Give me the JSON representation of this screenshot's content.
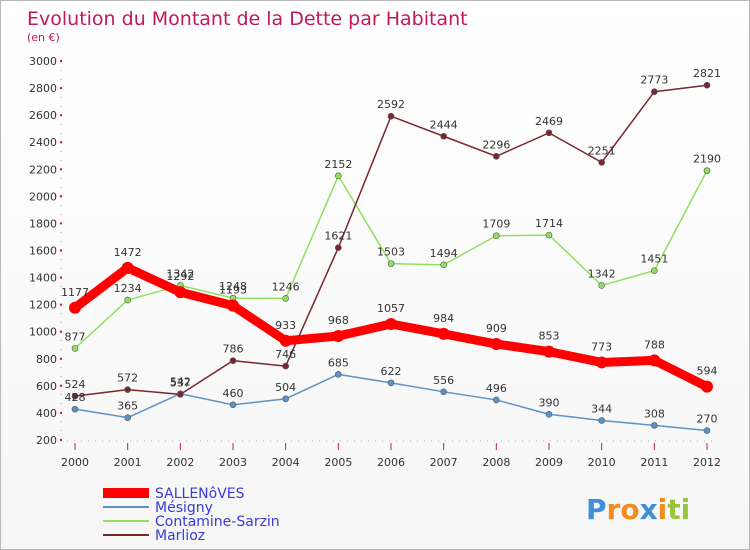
{
  "chart_data": {
    "type": "line",
    "title": "Evolution du Montant de la Dette par Habitant",
    "subtitle": "(en €)",
    "categories": [
      "2000",
      "2001",
      "2002",
      "2003",
      "2004",
      "2005",
      "2006",
      "2007",
      "2008",
      "2009",
      "2010",
      "2011",
      "2012"
    ],
    "ylim": [
      200,
      3000
    ],
    "yticks": [
      200,
      400,
      600,
      800,
      1000,
      1200,
      1400,
      1600,
      1800,
      2000,
      2200,
      2400,
      2600,
      2800,
      3000
    ],
    "grid": false,
    "legend_position": "bottom-left",
    "series": [
      {
        "name": "SALLENôVES",
        "color": "#ff0000",
        "emphasis": true,
        "values": [
          1177,
          1472,
          1292,
          1193,
          933,
          968,
          1057,
          984,
          909,
          853,
          773,
          788,
          594
        ]
      },
      {
        "name": "Mésigny",
        "color": "#5b93c6",
        "values": [
          428,
          365,
          542,
          460,
          504,
          685,
          622,
          556,
          496,
          390,
          344,
          308,
          270
        ]
      },
      {
        "name": "Contamine-Sarzin",
        "color": "#90e060",
        "values": [
          877,
          1234,
          1342,
          1248,
          1246,
          2152,
          1503,
          1494,
          1709,
          1714,
          1342,
          1451,
          2190
        ]
      },
      {
        "name": "Marlioz",
        "color": "#7a2530",
        "values": [
          524,
          572,
          537,
          786,
          746,
          1621,
          2592,
          2444,
          2296,
          2469,
          2251,
          2773,
          2821
        ]
      }
    ]
  },
  "brand": {
    "letters": [
      "P",
      "r",
      "o",
      "x",
      "i",
      "t",
      "i"
    ],
    "colors": [
      "#3e8fd8",
      "#f28c1e",
      "#f28c1e",
      "#3e8fd8",
      "#f28c1e",
      "#9ac43c",
      "#9ac43c"
    ]
  }
}
